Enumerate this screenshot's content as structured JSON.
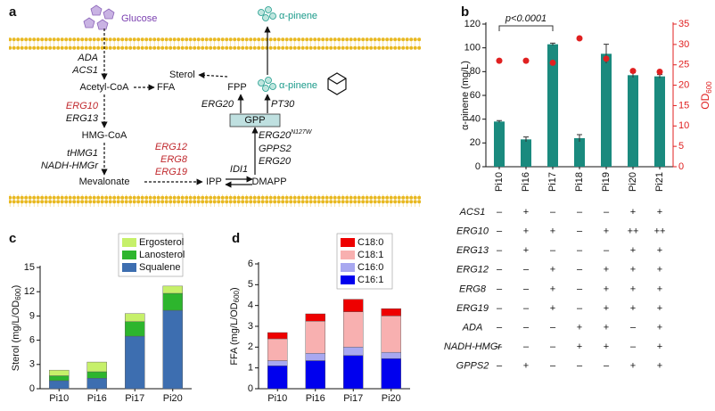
{
  "panel_labels": [
    "a",
    "b",
    "c",
    "d"
  ],
  "diagram": {
    "glucose": "Glucose",
    "pinene_out": "α-pinene",
    "pinene_in": "α-pinene",
    "ada": "ADA",
    "acs1": "ACS1",
    "acetyl_coa": "Acetyl-CoA",
    "ffa": "FFA",
    "erg10": "ERG10",
    "erg13": "ERG13",
    "hmg_coa": "HMG-CoA",
    "thmg1": "tHMG1",
    "nadh_hmgr": "NADH-HMGr",
    "mevalonate": "Mevalonate",
    "erg12": "ERG12",
    "erg8": "ERG8",
    "erg19": "ERG19",
    "ipp": "IPP",
    "idi1": "IDI1",
    "dmapp": "DMAPP",
    "erg20_mut": "ERG20",
    "erg20_mut_sup": "N127W",
    "gpps2": "GPPS2",
    "erg20_b": "ERG20",
    "gpp": "GPP",
    "erg20_a": "ERG20",
    "pt30": "PT30",
    "fpp": "FPP",
    "sterol": "Sterol"
  },
  "chart_data": [
    {
      "type": "bar",
      "ylabel": "α-pinene (mg/L)",
      "y2label": "OD",
      "y2label_sub": "600",
      "annotation": "p<0.0001",
      "categories": [
        "Pi10",
        "Pi16",
        "Pi17",
        "Pi18",
        "Pi19",
        "Pi20",
        "Pi21"
      ],
      "series": [
        {
          "color": "#1a8a7e",
          "values": [
            38,
            23,
            103,
            24,
            95,
            77,
            76
          ],
          "errors": [
            0.8,
            2,
            1,
            3,
            8,
            2,
            1.5
          ]
        },
        {
          "type": "scatter",
          "axis": "y2",
          "color": "#e02020",
          "values": [
            26,
            26,
            25.5,
            31.5,
            26.5,
            23.5,
            23.3
          ]
        }
      ],
      "ylim": [
        0,
        120
      ],
      "yticks": [
        0,
        20,
        40,
        60,
        80,
        100,
        120
      ],
      "y2lim": [
        0,
        35
      ],
      "y2ticks": [
        0,
        5,
        10,
        15,
        20,
        25,
        30,
        35
      ]
    },
    {
      "type": "stacked_bar",
      "ylabel": "Sterol (mg/L/OD",
      "ylabel_sub": "600",
      "ylabel_end": ")",
      "categories": [
        "Pi10",
        "Pi16",
        "Pi17",
        "Pi20"
      ],
      "series": [
        {
          "name": "Squalene",
          "color": "#3d6eb0",
          "values": [
            1.0,
            1.3,
            6.5,
            9.7
          ]
        },
        {
          "name": "Lanosterol",
          "color": "#2db52d",
          "values": [
            0.6,
            0.8,
            1.8,
            2.1
          ]
        },
        {
          "name": "Ergosterol",
          "color": "#c6f06a",
          "values": [
            0.7,
            1.2,
            1.0,
            0.9
          ]
        }
      ],
      "ylim": [
        0,
        15
      ],
      "yticks": [
        0,
        3,
        6,
        9,
        12,
        15
      ]
    },
    {
      "type": "stacked_bar",
      "ylabel": "FFA (mg/L/OD",
      "ylabel_sub": "600",
      "ylabel_end": ")",
      "categories": [
        "Pi10",
        "Pi16",
        "Pi17",
        "Pi20"
      ],
      "series": [
        {
          "name": "C16:1",
          "color": "#0000ee",
          "values": [
            1.1,
            1.35,
            1.6,
            1.45
          ]
        },
        {
          "name": "C16:0",
          "color": "#a8a8f0",
          "values": [
            0.25,
            0.35,
            0.4,
            0.3
          ]
        },
        {
          "name": "C18:1",
          "color": "#f8b0b0",
          "values": [
            1.05,
            1.55,
            1.7,
            1.75
          ]
        },
        {
          "name": "C18:0",
          "color": "#ee0000",
          "values": [
            0.3,
            0.35,
            0.6,
            0.35
          ]
        }
      ],
      "ylim": [
        0,
        6
      ],
      "yticks": [
        0,
        1,
        2,
        3,
        4,
        5,
        6
      ]
    }
  ],
  "table": {
    "rows": [
      {
        "gene": "ACS1",
        "cells": [
          "–",
          "+",
          "–",
          "–",
          "–",
          "+",
          "+"
        ]
      },
      {
        "gene": "ERG10",
        "cells": [
          "–",
          "+",
          "+",
          "–",
          "+",
          "++",
          "++"
        ]
      },
      {
        "gene": "ERG13",
        "cells": [
          "–",
          "+",
          "–",
          "–",
          "–",
          "+",
          "+"
        ]
      },
      {
        "gene": "ERG12",
        "cells": [
          "–",
          "–",
          "+",
          "–",
          "+",
          "+",
          "+"
        ]
      },
      {
        "gene": "ERG8",
        "cells": [
          "–",
          "–",
          "+",
          "–",
          "+",
          "+",
          "+"
        ]
      },
      {
        "gene": "ERG19",
        "cells": [
          "–",
          "–",
          "+",
          "–",
          "+",
          "+",
          "+"
        ]
      },
      {
        "gene": "ADA",
        "cells": [
          "–",
          "–",
          "–",
          "+",
          "+",
          "–",
          "+"
        ]
      },
      {
        "gene": "NADH-HMGr",
        "cells": [
          "–",
          "–",
          "–",
          "+",
          "+",
          "–",
          "+"
        ]
      },
      {
        "gene": "GPPS2",
        "cells": [
          "–",
          "+",
          "–",
          "–",
          "–",
          "+",
          "+"
        ]
      }
    ]
  }
}
